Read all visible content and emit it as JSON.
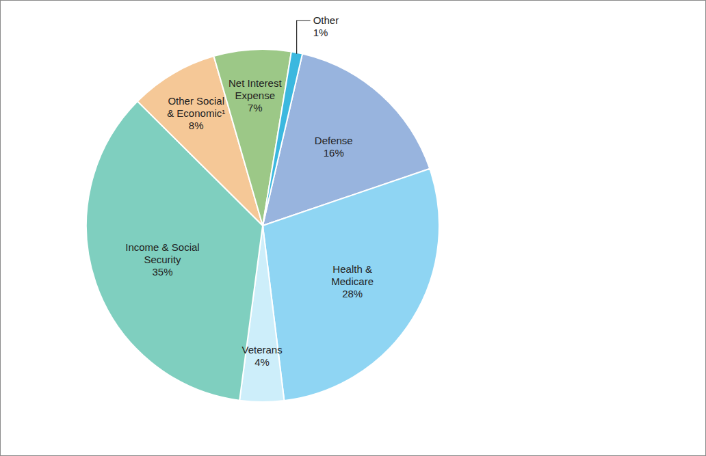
{
  "chart_data": {
    "type": "pie",
    "categories": [
      "Defense",
      "Health & Medicare",
      "Veterans",
      "Income & Social Security",
      "Other Social & Economic¹",
      "Net Interest Expense",
      "Other"
    ],
    "values": [
      16,
      28,
      4,
      35,
      8,
      7,
      1
    ],
    "value_labels": [
      "16%",
      "28%",
      "4%",
      "35%",
      "8%",
      "7%",
      "1%"
    ],
    "colors": [
      "#98b4de",
      "#8fd5f3",
      "#cdeefa",
      "#7fcfbf",
      "#f5c897",
      "#9cc887",
      "#3bb8df"
    ],
    "data_labels": true
  }
}
